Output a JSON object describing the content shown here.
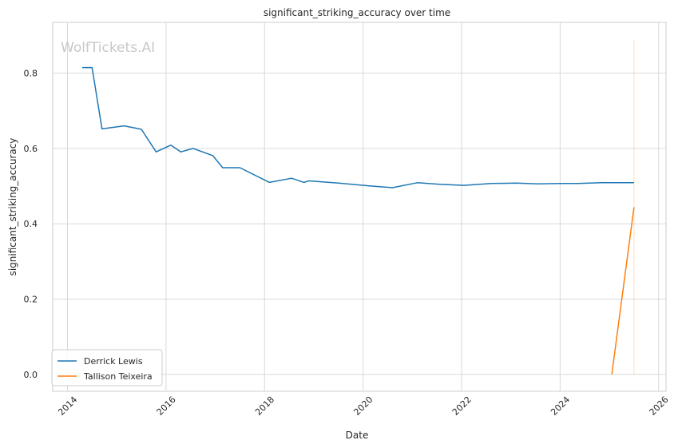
{
  "chart_data": {
    "type": "line",
    "title": "significant_striking_accuracy over time",
    "xlabel": "Date",
    "ylabel": "significant_striking_accuracy",
    "watermark": "WolfTickets.AI",
    "xlim": [
      2013.7,
      2026.15
    ],
    "ylim": [
      -0.045,
      0.935
    ],
    "x_ticks": [
      2014,
      2016,
      2018,
      2020,
      2022,
      2024,
      2026
    ],
    "y_ticks": [
      0.0,
      0.2,
      0.4,
      0.6,
      0.8
    ],
    "x_tick_labels": [
      "2014",
      "2016",
      "2018",
      "2020",
      "2022",
      "2024",
      "2026"
    ],
    "y_tick_labels": [
      "0.0",
      "0.2",
      "0.4",
      "0.6",
      "0.8"
    ],
    "grid": true,
    "legend_position": "lower-left",
    "series": [
      {
        "name": "Derrick Lewis",
        "color": "#1f77b4",
        "points": [
          [
            2014.3,
            0.815
          ],
          [
            2014.5,
            0.815
          ],
          [
            2014.7,
            0.652
          ],
          [
            2015.15,
            0.66
          ],
          [
            2015.5,
            0.651
          ],
          [
            2015.8,
            0.591
          ],
          [
            2016.1,
            0.609
          ],
          [
            2016.3,
            0.591
          ],
          [
            2016.55,
            0.6
          ],
          [
            2016.95,
            0.581
          ],
          [
            2017.15,
            0.549
          ],
          [
            2017.5,
            0.549
          ],
          [
            2018.1,
            0.51
          ],
          [
            2018.55,
            0.521
          ],
          [
            2018.8,
            0.51
          ],
          [
            2018.9,
            0.514
          ],
          [
            2019.5,
            0.508
          ],
          [
            2020.1,
            0.501
          ],
          [
            2020.6,
            0.496
          ],
          [
            2021.1,
            0.509
          ],
          [
            2021.55,
            0.505
          ],
          [
            2022.05,
            0.502
          ],
          [
            2022.6,
            0.507
          ],
          [
            2023.1,
            0.508
          ],
          [
            2023.55,
            0.506
          ],
          [
            2024.0,
            0.507
          ],
          [
            2024.35,
            0.507
          ],
          [
            2024.85,
            0.509
          ],
          [
            2025.5,
            0.509
          ]
        ]
      },
      {
        "name": "Tallison Teixeira",
        "color": "#ff7f0e",
        "points": [
          [
            2025.05,
            0.0
          ],
          [
            2025.5,
            0.444
          ]
        ]
      }
    ],
    "vertical_marker": {
      "x": 2025.5,
      "y_range": [
        0.0,
        0.888
      ],
      "color": "#ff7f0e"
    }
  }
}
